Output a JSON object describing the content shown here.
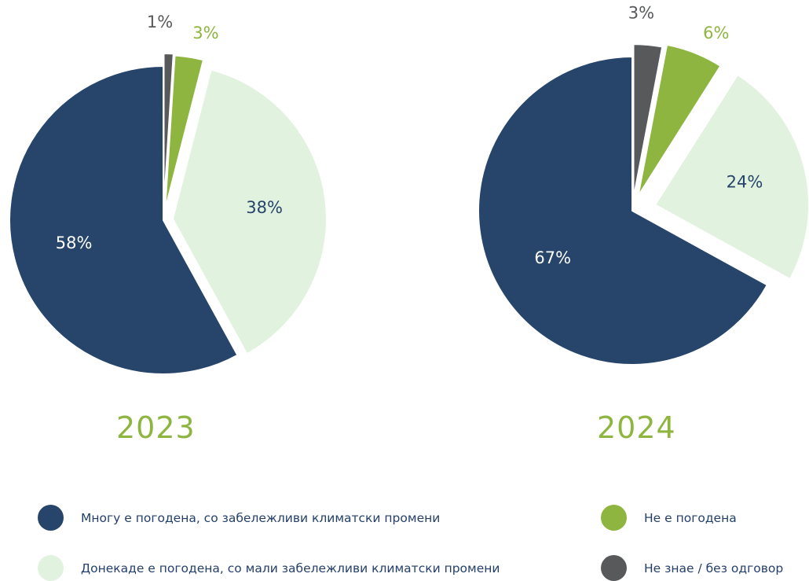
{
  "chart_data": [
    {
      "type": "pie",
      "title": "2023",
      "categories": [
        "Многу е погодена, со забележливи климатски промени",
        "Донекаде е погодена, со мали забележливи климатски промени",
        "Не е погодена",
        "Не знае / без одговор"
      ],
      "values": [
        58,
        38,
        3,
        1
      ],
      "labels": [
        "58%",
        "38%",
        "3%",
        "1%"
      ]
    },
    {
      "type": "pie",
      "title": "2024",
      "categories": [
        "Многу е погодена, со забележливи климатски промени",
        "Донекаде е погодена, со мали забележливи климатски промени",
        "Не е погодена",
        "Не знае / без одговор"
      ],
      "values": [
        67,
        24,
        6,
        3
      ],
      "labels": [
        "67%",
        "24%",
        "6%",
        "3%"
      ]
    }
  ],
  "colors": {
    "very_affected": "#27456a",
    "somewhat_affected": "#e1f2df",
    "not_affected": "#8db53f",
    "no_answer": "#58595b",
    "year_label": "#8db53f"
  },
  "legend": [
    {
      "label": "Многу е погодена, со забележливи климатски промени",
      "color": "#27456a"
    },
    {
      "label": "Не е погодена",
      "color": "#8db53f"
    },
    {
      "label": "Донекаде е погодена, со мали забележливи климатски промени",
      "color": "#e1f2df"
    },
    {
      "label": "Не знае / без одговор",
      "color": "#58595b"
    }
  ]
}
